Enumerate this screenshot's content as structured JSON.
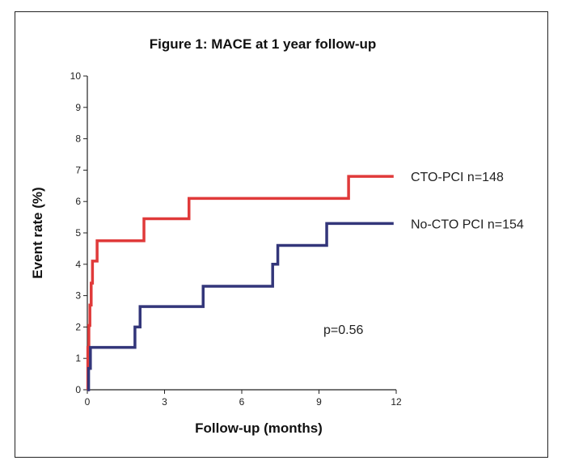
{
  "chart_data": {
    "type": "line",
    "step": true,
    "title": "Figure 1: MACE at 1 year follow-up",
    "xlabel": "Follow-up (months)",
    "ylabel": "Event rate (%)",
    "xlim": [
      0,
      12
    ],
    "ylim": [
      0,
      10
    ],
    "x_ticks": [
      0,
      3,
      6,
      9,
      12
    ],
    "y_ticks": [
      0,
      1,
      2,
      3,
      4,
      5,
      6,
      7,
      8,
      9,
      10
    ],
    "grid": false,
    "legend": "right, end of lines",
    "annotation": "p=0.56",
    "series": [
      {
        "name": "CTO-PCI n=148",
        "color": "#e03a3a",
        "points": [
          [
            0,
            0
          ],
          [
            0.02,
            1.35
          ],
          [
            0.06,
            2.05
          ],
          [
            0.1,
            2.7
          ],
          [
            0.15,
            3.4
          ],
          [
            0.2,
            4.1
          ],
          [
            0.38,
            4.75
          ],
          [
            2.2,
            5.45
          ],
          [
            3.95,
            6.1
          ],
          [
            10.15,
            6.8
          ],
          [
            11.9,
            6.8
          ]
        ]
      },
      {
        "name": "No-CTO PCI n=154",
        "color": "#33367a",
        "points": [
          [
            0,
            0
          ],
          [
            0.05,
            0.68
          ],
          [
            0.12,
            1.35
          ],
          [
            1.85,
            2.0
          ],
          [
            2.05,
            2.65
          ],
          [
            4.5,
            3.3
          ],
          [
            7.2,
            4.0
          ],
          [
            7.4,
            4.6
          ],
          [
            9.3,
            5.3
          ],
          [
            11.9,
            5.3
          ]
        ]
      }
    ]
  }
}
